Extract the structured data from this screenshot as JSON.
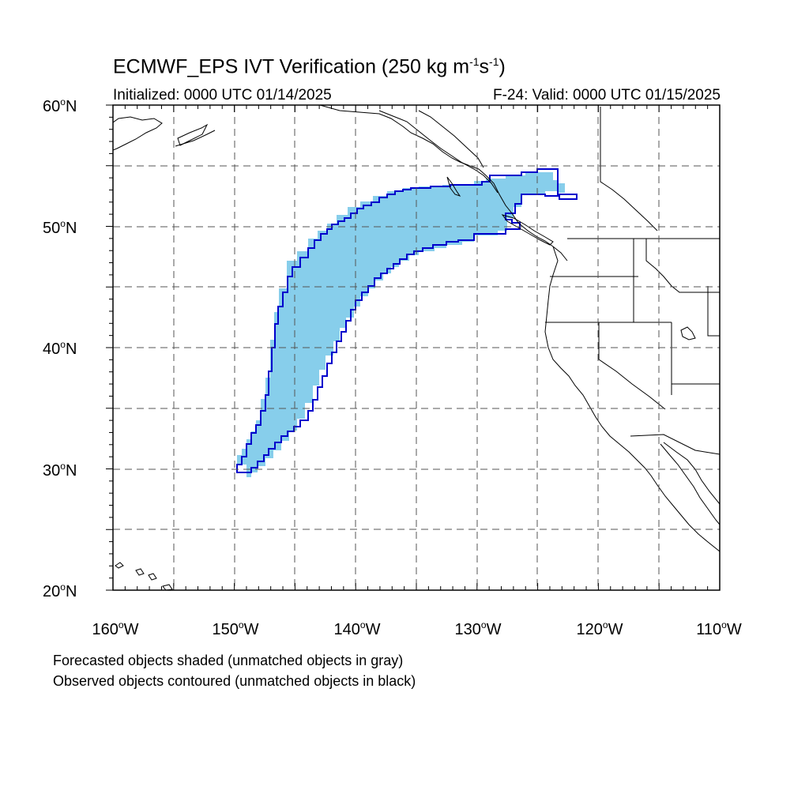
{
  "title": {
    "main": "ECMWF_EPS IVT Verification (250 kg m",
    "sup1": "-1",
    "mid": "s",
    "sup2": "-1",
    "end": ")"
  },
  "initialized": "Initialized: 0000 UTC 01/14/2025",
  "valid": "F-24: Valid: 0000 UTC 01/15/2025",
  "latitude_labels": [
    {
      "value": "60",
      "suffix": "N"
    },
    {
      "value": "50",
      "suffix": "N"
    },
    {
      "value": "40",
      "suffix": "N"
    },
    {
      "value": "30",
      "suffix": "N"
    },
    {
      "value": "20",
      "suffix": "N"
    }
  ],
  "longitude_labels": [
    {
      "value": "160",
      "suffix": "W"
    },
    {
      "value": "150",
      "suffix": "W"
    },
    {
      "value": "140",
      "suffix": "W"
    },
    {
      "value": "130",
      "suffix": "W"
    },
    {
      "value": "120",
      "suffix": "W"
    },
    {
      "value": "110",
      "suffix": "W"
    }
  ],
  "legend": {
    "forecast": "Forecasted objects shaded (unmatched objects in gray)",
    "observed": "Observed objects contoured (unmatched objects in black)"
  },
  "colors": {
    "forecast_fill": "#87ceeb",
    "observed_outline": "#0000cc",
    "grid": "#555555",
    "coastline": "#000000"
  },
  "map_extent": {
    "lon_min": -160,
    "lon_max": -110,
    "lat_min": 20,
    "lat_max": 60,
    "grid_spacing_deg": 5
  }
}
